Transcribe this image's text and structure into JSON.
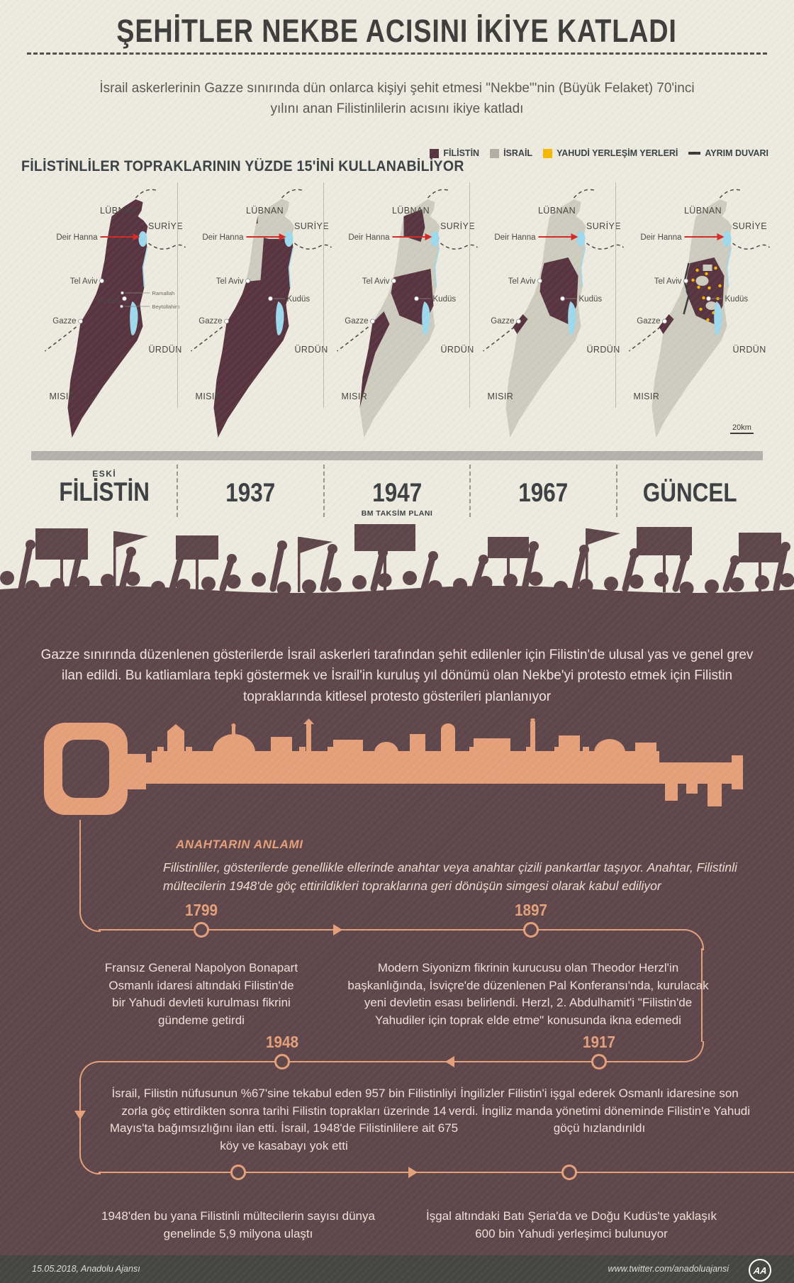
{
  "header": {
    "title": "ŞEHİTLER NEKBE ACISINI İKİYE KATLADI",
    "subtitle": "İsrail askerlerinin Gazze sınırında dün onlarca kişiyi şehit etmesi \"Nekbe\"'nin (Büyük Felaket) 70'inci yılını anan Filistinlilerin acısını ikiye katladı"
  },
  "maps_section": {
    "heading": "FİLİSTİNLİLER TOPRAKLARININ YÜZDE 15'İNİ KULLANABİLİYOR",
    "legend": [
      {
        "label": "FİLİSTİN",
        "color": "#583440",
        "shape": "square"
      },
      {
        "label": "İSRAİL",
        "color": "#b2afa2",
        "shape": "square"
      },
      {
        "label": "YAHUDİ YERLEŞİM YERLERİ",
        "color": "#f5b800",
        "shape": "square"
      },
      {
        "label": "AYRIM DUVARI",
        "color": "#3a3a3a",
        "shape": "line"
      }
    ],
    "scale_label": "20km",
    "map_labels": {
      "lebanon": "LÜBNAN",
      "syria": "SURİYE",
      "deir_hanna": "Deir Hanna",
      "tel_aviv": "Tel Aviv",
      "jerusalem": "Kudüs",
      "gaza": "Gazze",
      "jordan": "ÜRDÜN",
      "egypt": "MISIR",
      "ramallah": "Ramallah",
      "bethlehem": "Beytüllahim"
    },
    "maps": [
      {
        "era_small": "ESKİ",
        "era": "FİLİSTİN",
        "variant": "full"
      },
      {
        "era": "1937",
        "variant": "peel"
      },
      {
        "era": "1947",
        "era_sub": "BM TAKSİM PLANI",
        "variant": "partition"
      },
      {
        "era": "1967",
        "variant": "1967"
      },
      {
        "era": "GÜNCEL",
        "variant": "current"
      }
    ]
  },
  "mid_section": {
    "paragraph": "Gazze sınırında düzenlenen gösterilerde İsrail askerleri tarafından şehit edilenler için Filistin'de ulusal yas ve genel grev ilan edildi. Bu katliamlara tepki göstermek ve İsrail'in kuruluş yıl dönümü olan Nekbe'yi protesto etmek için Filistin topraklarında kitlesel protesto gösterileri planlanıyor"
  },
  "key_section": {
    "heading": "ANAHTARIN ANLAMI",
    "body": "Filistinliler, gösterilerde genellikle ellerinde anahtar veya anahtar çizili pankartlar taşıyor. Anahtar, Filistinli mültecilerin 1948'de göç ettirildikleri topraklarına geri dönüşün simgesi olarak kabul ediliyor"
  },
  "timeline": {
    "events": [
      {
        "year": "1799",
        "text": "Fransız General Napolyon Bonapart Osmanlı idaresi altındaki Filistin'de bir Yahudi devleti kurulması fikrini gündeme getirdi"
      },
      {
        "year": "1897",
        "text": "Modern Siyonizm fikrinin kurucusu olan Theodor Herzl'in başkanlığında, İsviçre'de düzenlenen Pal Konferansı'nda, kurulacak yeni devletin esası belirlendi. Herzl, 2. Abdulhamit'i \"Filistin'de Yahudiler için toprak elde etme\" konusunda ikna edemedi"
      },
      {
        "year": "1948",
        "text": "İsrail, Filistin nüfusunun %67'sine tekabul eden 957 bin Filistinliyi zorla göç ettirdikten sonra tarihi Filistin toprakları üzerinde 14 Mayıs'ta bağımsızlığını ilan etti. İsrail, 1948'de Filistinlilere ait 675 köy ve kasabayı yok etti"
      },
      {
        "year": "1917",
        "text": "İngilizler Filistin'i işgal ederek Osmanlı idaresine son verdi. İngiliz manda yönetimi döneminde Filistin'e Yahudi göçü hızlandırıldı"
      }
    ],
    "footnotes": [
      "1948'den bu yana Filistinli mültecilerin sayısı dünya genelinde 5,9 milyona ulaştı",
      "İşgal altındaki Batı Şeria'da ve Doğu Kudüs'te yaklaşık 600 bin Yahudi yerleşimci bulunuyor"
    ]
  },
  "footer": {
    "date": "15.05.2018, Anadolu Ajansı",
    "url": "www.twitter.com/anadoluajansi",
    "logo_text": "AA"
  },
  "colors": {
    "background_cream": "#edeadf",
    "background_maroon": "#5e464b",
    "palestine": "#583440",
    "israel_map": "#cecbbf",
    "israel_legend": "#b2afa2",
    "settlements": "#f5b800",
    "separation_wall": "#3a3a3a",
    "water": "#9fd9ec",
    "accent_salmon": "#e5a07a",
    "marker_red": "#d22b27"
  }
}
